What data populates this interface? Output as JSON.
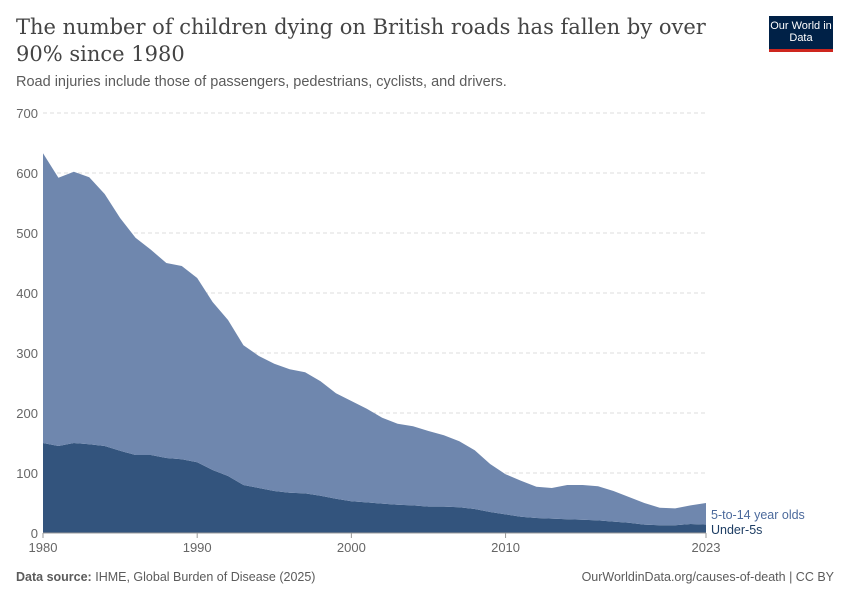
{
  "header": {
    "title": "The number of children dying on British roads has fallen by over 90% since 1980",
    "subtitle": "Road injuries include those of passengers, pedestrians, cyclists, and drivers.",
    "logo": "Our World in Data"
  },
  "footer": {
    "source_label": "Data source:",
    "source": "IHME, Global Burden of Disease (2025)",
    "link": "OurWorldinData.org/causes-of-death | CC BY"
  },
  "colors": {
    "under5": "#33547d",
    "age5to14": "#6f87ae",
    "under5_label": "#1d3d63",
    "age5to14_label": "#4c6a9c"
  },
  "chart_data": {
    "type": "area",
    "stacked": true,
    "title": "The number of children dying on British roads has fallen by over 90% since 1980",
    "subtitle": "Road injuries include those of passengers, pedestrians, cyclists, and drivers.",
    "xlabel": "",
    "ylabel": "",
    "ylim": [
      0,
      700
    ],
    "xlim": [
      1980,
      2023
    ],
    "yticks": [
      0,
      100,
      200,
      300,
      400,
      500,
      600,
      700
    ],
    "xticks": [
      1980,
      1990,
      2000,
      2010,
      2023
    ],
    "grid": "horizontal dashed",
    "legend": "right, inline labels",
    "x": [
      1980,
      1981,
      1982,
      1983,
      1984,
      1985,
      1986,
      1987,
      1988,
      1989,
      1990,
      1991,
      1992,
      1993,
      1994,
      1995,
      1996,
      1997,
      1998,
      1999,
      2000,
      2001,
      2002,
      2003,
      2004,
      2005,
      2006,
      2007,
      2008,
      2009,
      2010,
      2011,
      2012,
      2013,
      2014,
      2015,
      2016,
      2017,
      2018,
      2019,
      2020,
      2021,
      2022,
      2023
    ],
    "series": [
      {
        "name": "Under-5s",
        "values": [
          150,
          145,
          150,
          148,
          145,
          137,
          130,
          130,
          125,
          123,
          118,
          105,
          95,
          80,
          75,
          70,
          67,
          66,
          62,
          57,
          53,
          51,
          49,
          47,
          46,
          44,
          44,
          43,
          40,
          35,
          31,
          27,
          25,
          24,
          23,
          22,
          21,
          19,
          17,
          14,
          13,
          13,
          15,
          14
        ]
      },
      {
        "name": "5-to-14 year olds",
        "values": [
          483,
          447,
          452,
          445,
          420,
          388,
          362,
          342,
          325,
          322,
          307,
          280,
          260,
          233,
          220,
          212,
          206,
          202,
          191,
          176,
          167,
          156,
          143,
          135,
          132,
          126,
          119,
          110,
          98,
          80,
          67,
          60,
          52,
          51,
          57,
          58,
          57,
          51,
          43,
          36,
          29,
          28,
          31,
          36
        ]
      }
    ]
  }
}
